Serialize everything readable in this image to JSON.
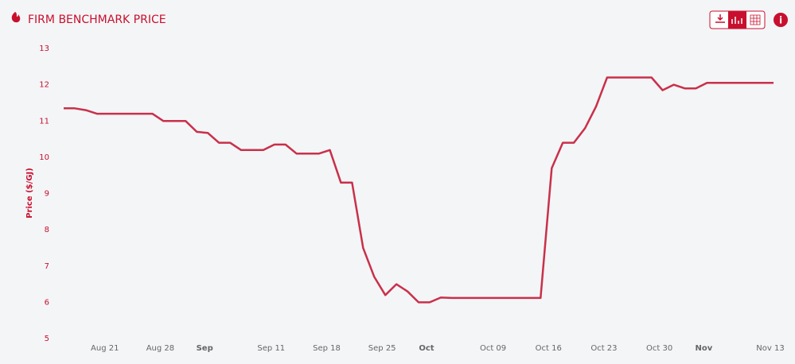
{
  "chart_data": {
    "type": "line",
    "title": "FIRM BENCHMARK PRICE",
    "y_label": "Price ($/GJ)",
    "categories": [
      null,
      null,
      null,
      null,
      "Aug 21",
      null,
      null,
      null,
      null,
      "Aug 28",
      null,
      null,
      null,
      "Sep",
      null,
      null,
      null,
      null,
      null,
      "Sep 11",
      null,
      null,
      null,
      null,
      "Sep 18",
      null,
      null,
      null,
      null,
      "Sep 25",
      null,
      null,
      null,
      "Oct",
      null,
      null,
      null,
      null,
      null,
      "Oct 09",
      null,
      null,
      null,
      null,
      "Oct 16",
      null,
      null,
      null,
      null,
      "Oct 23",
      null,
      null,
      null,
      null,
      "Oct 30",
      null,
      null,
      null,
      "Nov",
      null,
      null,
      null,
      null,
      null,
      "Nov 13"
    ],
    "series": [
      {
        "name": "Price",
        "color": "#c9304a",
        "values": [
          11.35,
          11.35,
          11.3,
          11.2,
          11.2,
          11.2,
          11.2,
          11.2,
          11.2,
          11.0,
          11.0,
          11.0,
          10.7,
          10.67,
          10.4,
          10.4,
          10.2,
          10.2,
          10.2,
          10.35,
          10.35,
          10.1,
          10.1,
          10.1,
          10.2,
          9.3,
          9.3,
          7.5,
          6.7,
          6.2,
          6.5,
          6.3,
          6.0,
          6.0,
          6.13,
          6.12,
          6.12,
          6.12,
          6.12,
          6.12,
          6.12,
          6.12,
          6.12,
          6.12,
          9.7,
          10.4,
          10.4,
          10.8,
          11.4,
          12.2,
          12.2,
          12.2,
          12.2,
          12.2,
          11.85,
          12.0,
          11.9,
          11.9,
          12.05,
          12.05,
          12.05,
          12.05,
          12.05,
          12.05,
          12.05
        ]
      }
    ],
    "ylim": [
      5,
      13
    ],
    "yticks": [
      5,
      6,
      7,
      8,
      9,
      10,
      11,
      12,
      13
    ],
    "grid": false
  }
}
